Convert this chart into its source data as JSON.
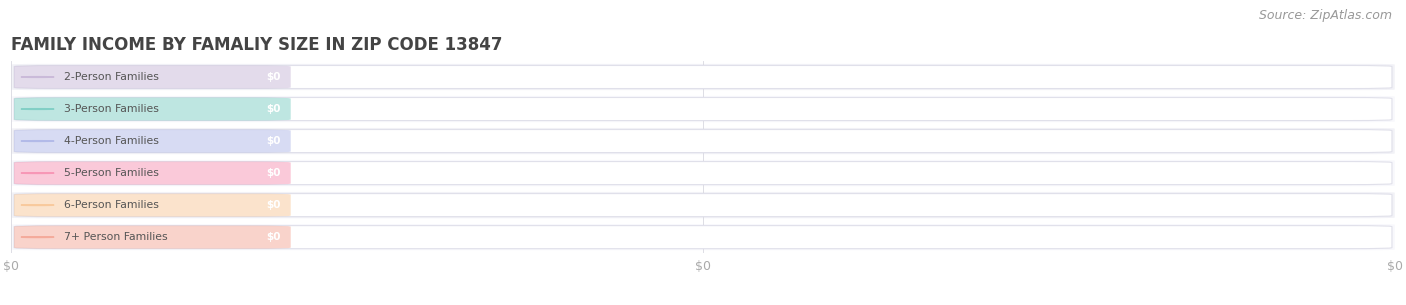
{
  "title": "FAMILY INCOME BY FAMALIY SIZE IN ZIP CODE 13847",
  "source": "Source: ZipAtlas.com",
  "categories": [
    "2-Person Families",
    "3-Person Families",
    "4-Person Families",
    "5-Person Families",
    "6-Person Families",
    "7+ Person Families"
  ],
  "values": [
    0,
    0,
    0,
    0,
    0,
    0
  ],
  "bar_colors": [
    "#c9b8d8",
    "#7ecec4",
    "#b0b8e8",
    "#f794b4",
    "#f8c89a",
    "#f4a898"
  ],
  "label_color": "#555555",
  "background_color": "#ffffff",
  "row_bg_even": "#f2f2f7",
  "row_bg_odd": "#f8f8fc",
  "title_color": "#444444",
  "title_fontsize": 12,
  "tick_label_color": "#aaaaaa",
  "source_color": "#999999",
  "source_fontsize": 9
}
